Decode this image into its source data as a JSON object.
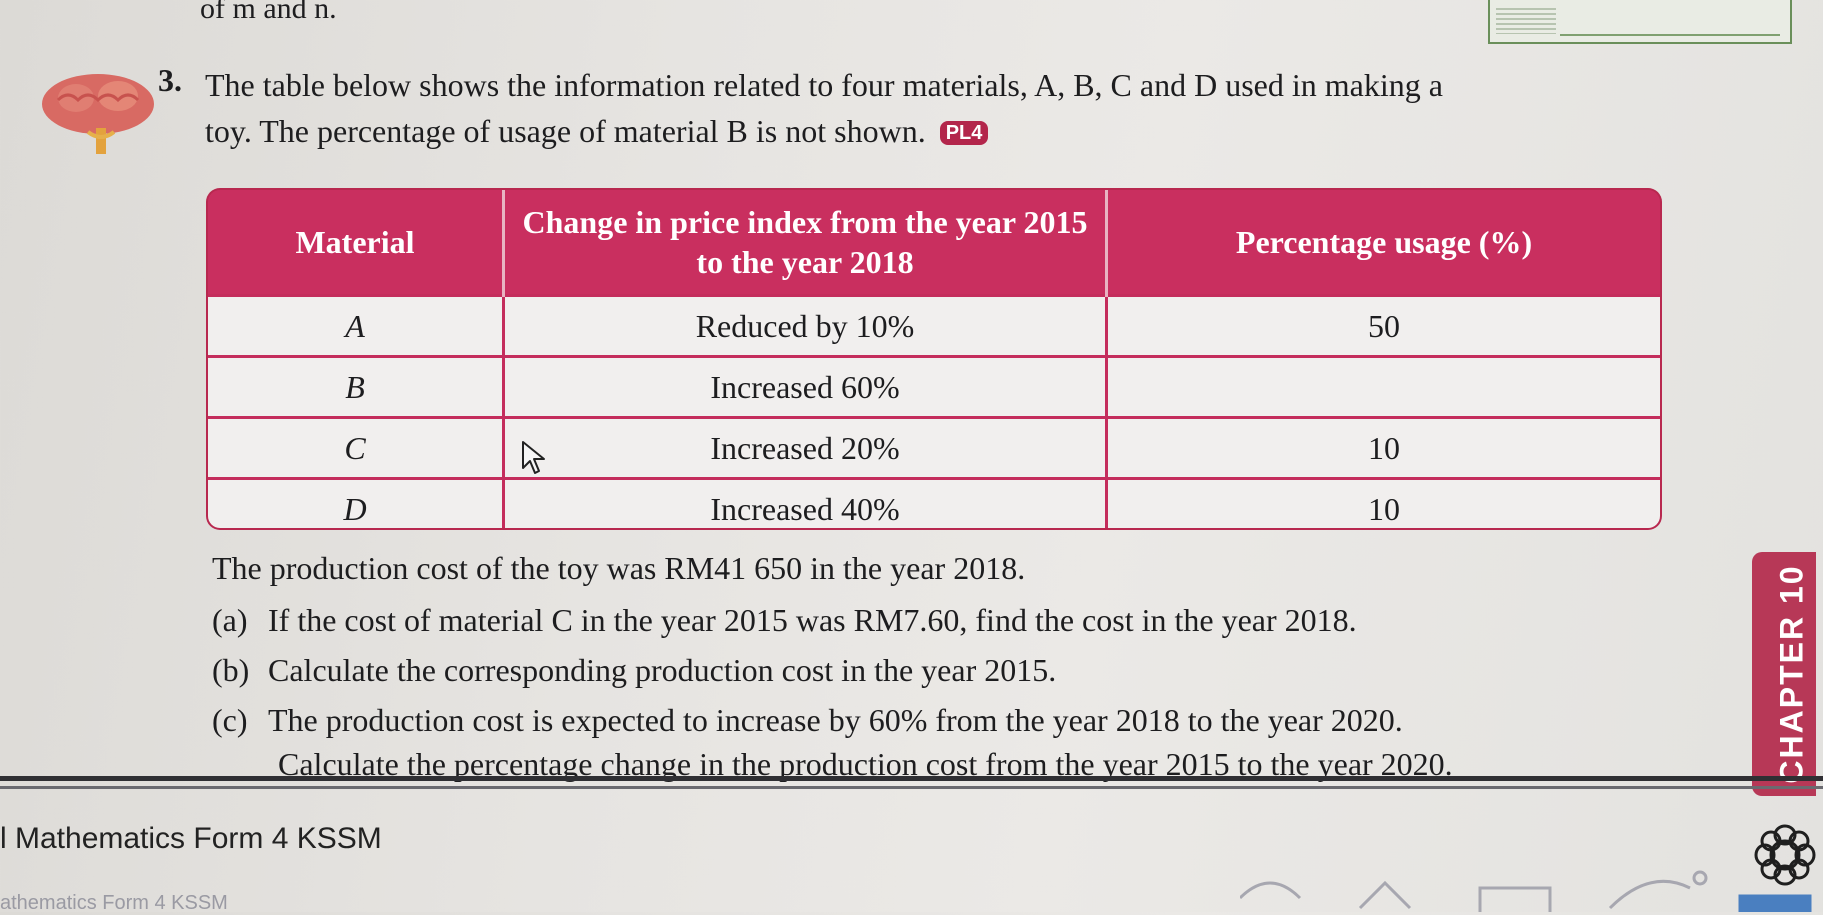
{
  "page": {
    "top_fragment": "of m and n.",
    "question": {
      "number": "3.",
      "intro_line1": "The table below shows the information related to four materials, A, B, C and D used in making a",
      "intro_line2": "toy. The percentage of usage of material B is not shown.",
      "pl_badge": "PL4"
    },
    "table": {
      "headers": [
        "Material",
        "Change in price index from the year 2015 to the year 2018",
        "Percentage usage (%)"
      ],
      "rows": [
        {
          "material": "A",
          "change": "Reduced by 10%",
          "usage": "50"
        },
        {
          "material": "B",
          "change": "Increased 60%",
          "usage": ""
        },
        {
          "material": "C",
          "change": "Increased 20%",
          "usage": "10"
        },
        {
          "material": "D",
          "change": "Increased 40%",
          "usage": "10"
        }
      ]
    },
    "prompt": "The production cost of the toy was RM41 650 in the year 2018.",
    "parts": [
      {
        "tag": "(a)",
        "text": "If the cost of material C in the year 2015 was RM7.60, find the cost in the year 2018."
      },
      {
        "tag": "(b)",
        "text": "Calculate the corresponding production cost in the year 2015."
      },
      {
        "tag": "(c)",
        "text": "The production cost is expected to increase by 60% from the year 2018 to the year 2020.",
        "continuation": "Calculate the percentage change in the production cost from the year 2015 to the year 2020."
      }
    ],
    "chapter_tab": "CHAPTER 10",
    "footer": "l Mathematics Form 4 KSSM",
    "ghost_footer": "athematics Form 4 KSSM",
    "colors": {
      "table_header": "#c92f5f",
      "chapter_tab": "#b73857",
      "badge": "#b3264b"
    },
    "icons": [
      "brain-icon",
      "cursor-arrow-icon",
      "flower-icon"
    ]
  }
}
